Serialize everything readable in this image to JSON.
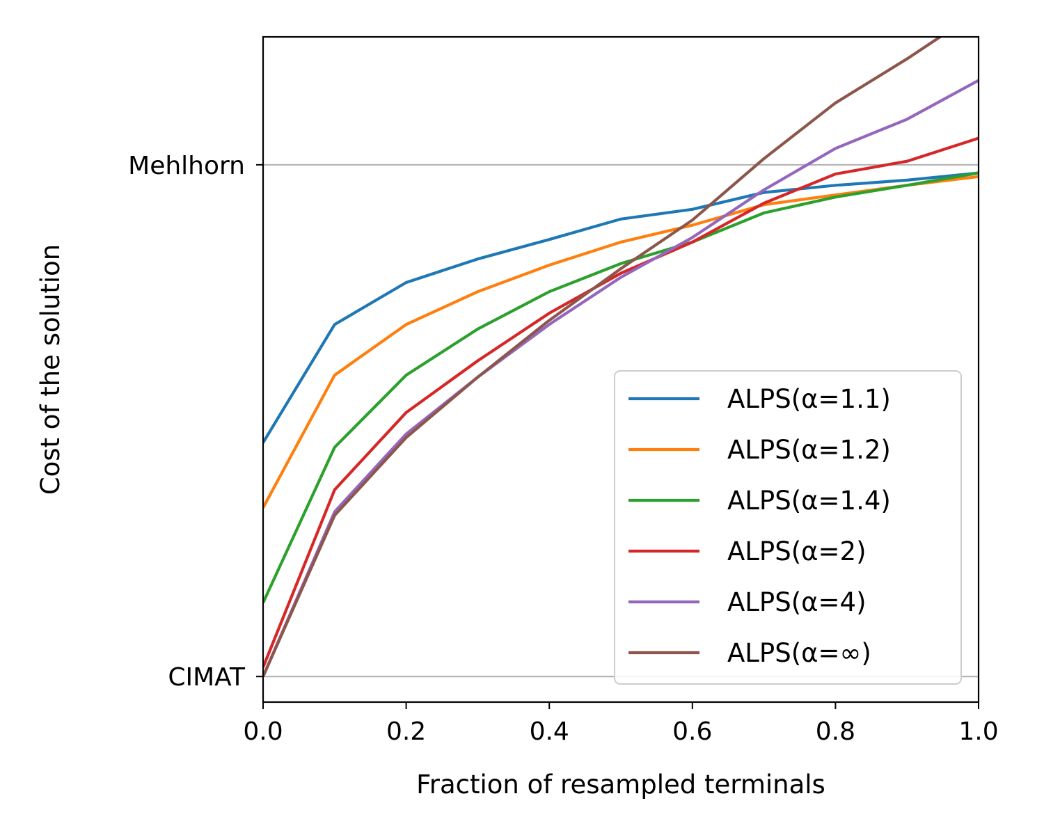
{
  "chart_data": {
    "type": "line",
    "title": "",
    "xlabel": "Fraction of resampled terminals",
    "ylabel": "Cost of the solution",
    "xlim": [
      0.0,
      1.0
    ],
    "ylim": [
      -0.05,
      1.25
    ],
    "x_ticks": [
      {
        "value": 0.0,
        "label": "0.0"
      },
      {
        "value": 0.2,
        "label": "0.2"
      },
      {
        "value": 0.4,
        "label": "0.4"
      },
      {
        "value": 0.6,
        "label": "0.6"
      },
      {
        "value": 0.8,
        "label": "0.8"
      },
      {
        "value": 1.0,
        "label": "1.0"
      }
    ],
    "y_ticks": [
      {
        "value": 0.0,
        "label": "CIMAT"
      },
      {
        "value": 1.0,
        "label": "Mehlhorn"
      }
    ],
    "grid": "horizontal lines at y ticks",
    "legend_position": "lower right",
    "x": [
      0.0,
      0.1,
      0.2,
      0.3,
      0.4,
      0.5,
      0.6,
      0.7,
      0.8,
      0.9,
      1.0
    ],
    "series": [
      {
        "name": "ALPS(α=1.1)",
        "color": "#1f77b4",
        "values": [
          0.457,
          0.688,
          0.77,
          0.816,
          0.854,
          0.894,
          0.913,
          0.946,
          0.96,
          0.97,
          0.984
        ]
      },
      {
        "name": "ALPS(α=1.2)",
        "color": "#ff7f0e",
        "values": [
          0.33,
          0.589,
          0.688,
          0.752,
          0.804,
          0.849,
          0.882,
          0.922,
          0.941,
          0.96,
          0.977
        ]
      },
      {
        "name": "ALPS(α=1.4)",
        "color": "#2ca02c",
        "values": [
          0.144,
          0.448,
          0.589,
          0.679,
          0.752,
          0.807,
          0.849,
          0.906,
          0.937,
          0.96,
          0.984
        ]
      },
      {
        "name": "ALPS(α=2)",
        "color": "#d62728",
        "values": [
          0.018,
          0.365,
          0.516,
          0.617,
          0.71,
          0.788,
          0.849,
          0.925,
          0.982,
          1.007,
          1.052
        ]
      },
      {
        "name": "ALPS(α=4)",
        "color": "#9467bd",
        "values": [
          0.0,
          0.322,
          0.474,
          0.585,
          0.688,
          0.78,
          0.858,
          0.951,
          1.032,
          1.089,
          1.165
        ]
      },
      {
        "name": "ALPS(α=∞)",
        "color": "#8c564b",
        "values": [
          0.0,
          0.315,
          0.467,
          0.585,
          0.696,
          0.797,
          0.892,
          1.012,
          1.121,
          1.207,
          1.3
        ]
      }
    ]
  }
}
